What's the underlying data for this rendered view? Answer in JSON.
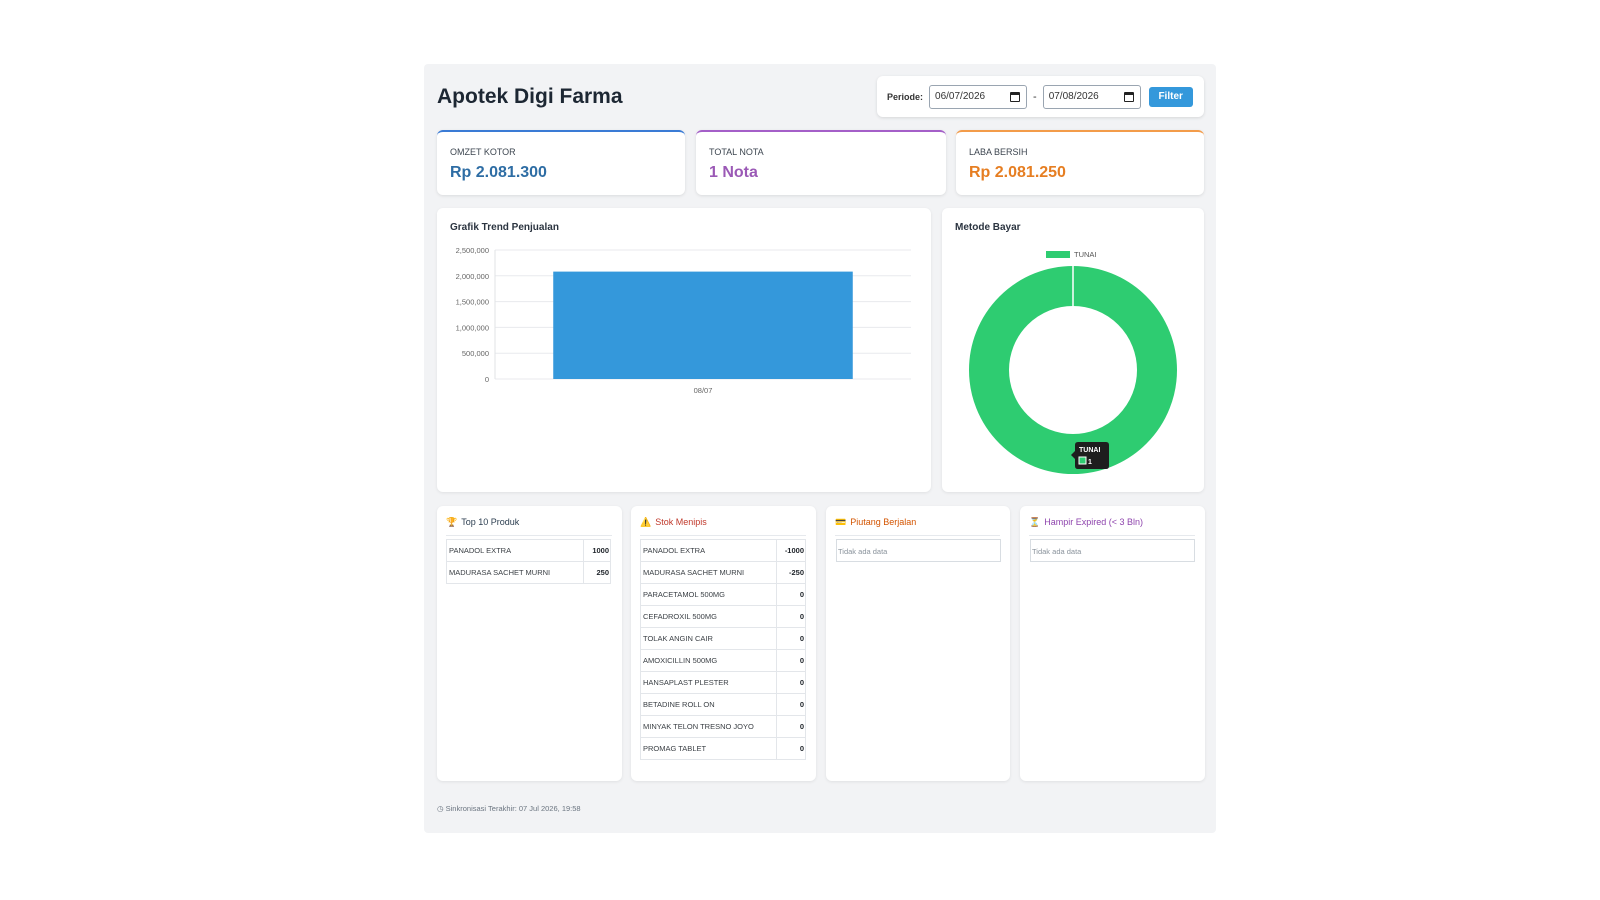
{
  "header": {
    "title": "Apotek Digi Farma",
    "period_label": "Periode:",
    "date_from": "06/07/2026",
    "date_separator": "-",
    "date_to": "07/08/2026",
    "filter_label": "Filter"
  },
  "stats": {
    "omzet": {
      "label": "OMZET KOTOR",
      "value": "Rp 2.081.300",
      "color": "#2e6da4"
    },
    "nota": {
      "label": "TOTAL NOTA",
      "value": "1 Nota",
      "color": "#9b59b6"
    },
    "laba": {
      "label": "LABA BERSIH",
      "value": "Rp 2.081.250",
      "color": "#e67e22"
    }
  },
  "trend": {
    "title": "Grafik Trend Penjualan"
  },
  "payment": {
    "title": "Metode Bayar",
    "tooltip_title": "TUNAI",
    "tooltip_value": "1"
  },
  "chart_data": [
    {
      "type": "bar",
      "categories": [
        "08/07"
      ],
      "values": [
        2081300
      ],
      "ylim": [
        0,
        2500000
      ],
      "yticks": [
        "2,500,000",
        "2,000,000",
        "1,500,000",
        "1,000,000",
        "500,000",
        "0"
      ],
      "grid": true,
      "color": "#3498db"
    },
    {
      "type": "pie",
      "categories": [
        "TUNAI"
      ],
      "values": [
        1
      ],
      "legend": [
        "TUNAI"
      ],
      "legend_position": "top",
      "color": "#2ecc71"
    }
  ],
  "top_products": {
    "title": "Top 10 Produk",
    "icon": "trophy-icon",
    "rows": [
      {
        "name": "PANADOL EXTRA",
        "qty": "1000"
      },
      {
        "name": "MADURASA SACHET MURNI",
        "qty": "250"
      }
    ]
  },
  "low_stock": {
    "title": "Stok Menipis",
    "icon": "warning-icon",
    "rows": [
      {
        "name": "PANADOL EXTRA",
        "qty": "-1000"
      },
      {
        "name": "MADURASA SACHET MURNI",
        "qty": "-250"
      },
      {
        "name": "PARACETAMOL 500MG",
        "qty": "0"
      },
      {
        "name": "CEFADROXIL 500MG",
        "qty": "0"
      },
      {
        "name": "TOLAK ANGIN CAIR",
        "qty": "0"
      },
      {
        "name": "AMOXICILLIN 500MG",
        "qty": "0"
      },
      {
        "name": "HANSAPLAST PLESTER",
        "qty": "0"
      },
      {
        "name": "BETADINE ROLL ON",
        "qty": "0"
      },
      {
        "name": "MINYAK TELON TRESNO JOYO",
        "qty": "0"
      },
      {
        "name": "PROMAG TABLET",
        "qty": "0"
      }
    ]
  },
  "receivables": {
    "title": "Piutang Berjalan",
    "icon": "card-icon",
    "empty": "Tidak ada data"
  },
  "expiring": {
    "title": "Hampir Expired (< 3 Bln)",
    "icon": "hourglass-icon",
    "empty": "Tidak ada data"
  },
  "footer": {
    "sync_text": "Sinkronisasi Terakhir: 07 Jul 2026, 19:58"
  }
}
